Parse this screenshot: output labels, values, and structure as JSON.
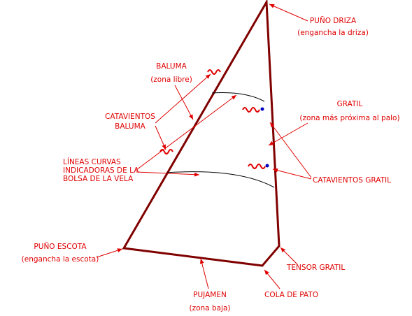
{
  "labels": [
    {
      "lines": [
        "PUÑO DRIZA",
        "(engancha la driza)"
      ]
    },
    {
      "lines": [
        "BALUMA",
        "(zona libre)"
      ]
    },
    {
      "lines": [
        "GRATIL",
        "(zona más próxima al palo)"
      ]
    },
    {
      "lines": [
        "CATAVIENTOS",
        "BALUMA"
      ]
    },
    {
      "lines": [
        "LÍNEAS CURVAS",
        "INDICADORAS DE LA",
        "BOLSA DE LA VELA"
      ]
    },
    {
      "lines": [
        "CATAVIENTOS GRATIL"
      ]
    },
    {
      "lines": [
        "PUÑO ESCOTA",
        "(engancha la escota)"
      ]
    },
    {
      "lines": [
        "TENSOR GRATIL"
      ]
    },
    {
      "lines": [
        "PUJAMEN",
        "(zona baja)"
      ]
    },
    {
      "lines": [
        "COLA DE PATO"
      ]
    }
  ]
}
